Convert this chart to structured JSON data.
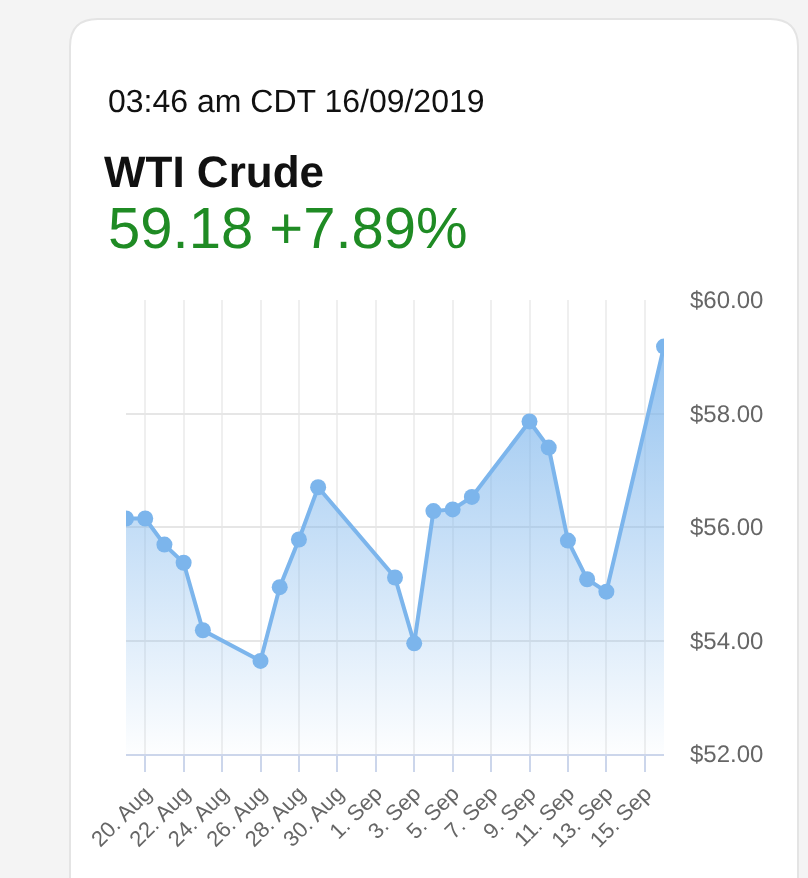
{
  "chart_data": {
    "type": "area",
    "title": "WTI Crude",
    "subtitle": "59.18 +7.89%",
    "annotations": [
      "03:46 am CDT 16/09/2019"
    ],
    "x": [
      "2019-08-19",
      "2019-08-20",
      "2019-08-21",
      "2019-08-22",
      "2019-08-23",
      "2019-08-26",
      "2019-08-27",
      "2019-08-28",
      "2019-08-29",
      "2019-09-02",
      "2019-09-03",
      "2019-09-04",
      "2019-09-05",
      "2019-09-06",
      "2019-09-09",
      "2019-09-10",
      "2019-09-11",
      "2019-09-12",
      "2019-09-13",
      "2019-09-16"
    ],
    "series": [
      {
        "color": "#7cb5ec",
        "values": [
          56.15,
          56.15,
          55.69,
          55.37,
          54.18,
          53.64,
          54.94,
          55.78,
          56.7,
          55.11,
          53.95,
          56.28,
          56.31,
          56.53,
          57.86,
          57.4,
          55.76,
          55.08,
          54.86,
          59.18
        ]
      }
    ],
    "xlim": [
      "2019-08-19",
      "2019-09-16"
    ],
    "xticks": [
      {
        "value": "2019-08-20",
        "label": "20. Aug"
      },
      {
        "value": "2019-08-22",
        "label": "22. Aug"
      },
      {
        "value": "2019-08-24",
        "label": "24. Aug"
      },
      {
        "value": "2019-08-26",
        "label": "26. Aug"
      },
      {
        "value": "2019-08-28",
        "label": "28. Aug"
      },
      {
        "value": "2019-08-30",
        "label": "30. Aug"
      },
      {
        "value": "2019-09-01",
        "label": "1. Sep"
      },
      {
        "value": "2019-09-03",
        "label": "3. Sep"
      },
      {
        "value": "2019-09-05",
        "label": "5. Sep"
      },
      {
        "value": "2019-09-07",
        "label": "7. Sep"
      },
      {
        "value": "2019-09-09",
        "label": "9. Sep"
      },
      {
        "value": "2019-09-11",
        "label": "11. Sep"
      },
      {
        "value": "2019-09-13",
        "label": "13. Sep"
      },
      {
        "value": "2019-09-15",
        "label": "15. Sep"
      }
    ],
    "ylim": [
      52,
      60
    ],
    "yticks": [
      {
        "value": 52,
        "label": "$52.00"
      },
      {
        "value": 54,
        "label": "$54.00"
      },
      {
        "value": 56,
        "label": "$56.00"
      },
      {
        "value": 58,
        "label": "$58.00"
      },
      {
        "value": 60,
        "label": "$60.00"
      }
    ],
    "grid": true,
    "marker": "circle",
    "line_style": "solid"
  }
}
